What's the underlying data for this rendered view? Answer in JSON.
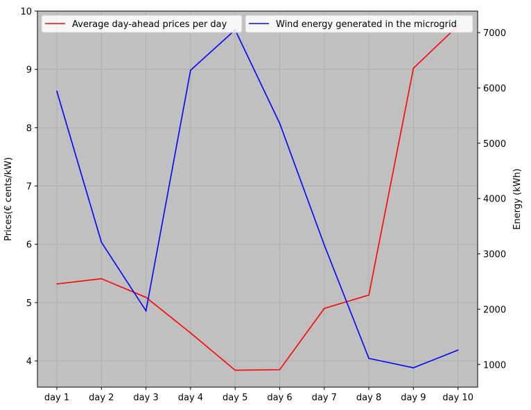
{
  "chart_data": {
    "type": "line",
    "categories": [
      "day 1",
      "day 2",
      "day 3",
      "day 4",
      "day 5",
      "day 6",
      "day 7",
      "day 8",
      "day 9",
      "day 10"
    ],
    "series": [
      {
        "name": "Average day-ahead prices per day",
        "axis": "left",
        "color": "#ff0000",
        "values": [
          5.32,
          5.41,
          5.09,
          4.48,
          3.84,
          3.85,
          4.9,
          5.13,
          9.02,
          9.75
        ]
      },
      {
        "name": "Wind energy generated in the microgrid",
        "axis": "right",
        "color": "#0000ff",
        "values": [
          5940,
          3210,
          1970,
          6320,
          7050,
          5360,
          3160,
          1110,
          940,
          1260
        ]
      }
    ],
    "ylabel_left": "Prices(€ cents/kW)",
    "ylabel_right": "Energy (kWh)",
    "ylim_left": [
      3.55,
      10
    ],
    "yticks_left": [
      4,
      5,
      6,
      7,
      8,
      9,
      10
    ],
    "ylim_right": [
      590,
      7390
    ],
    "yticks_right": [
      1000,
      2000,
      3000,
      4000,
      5000,
      6000,
      7000
    ],
    "grid": true,
    "plot_background": "#c0c0c0",
    "grid_color": "#aaaaaa",
    "legend": "top"
  }
}
